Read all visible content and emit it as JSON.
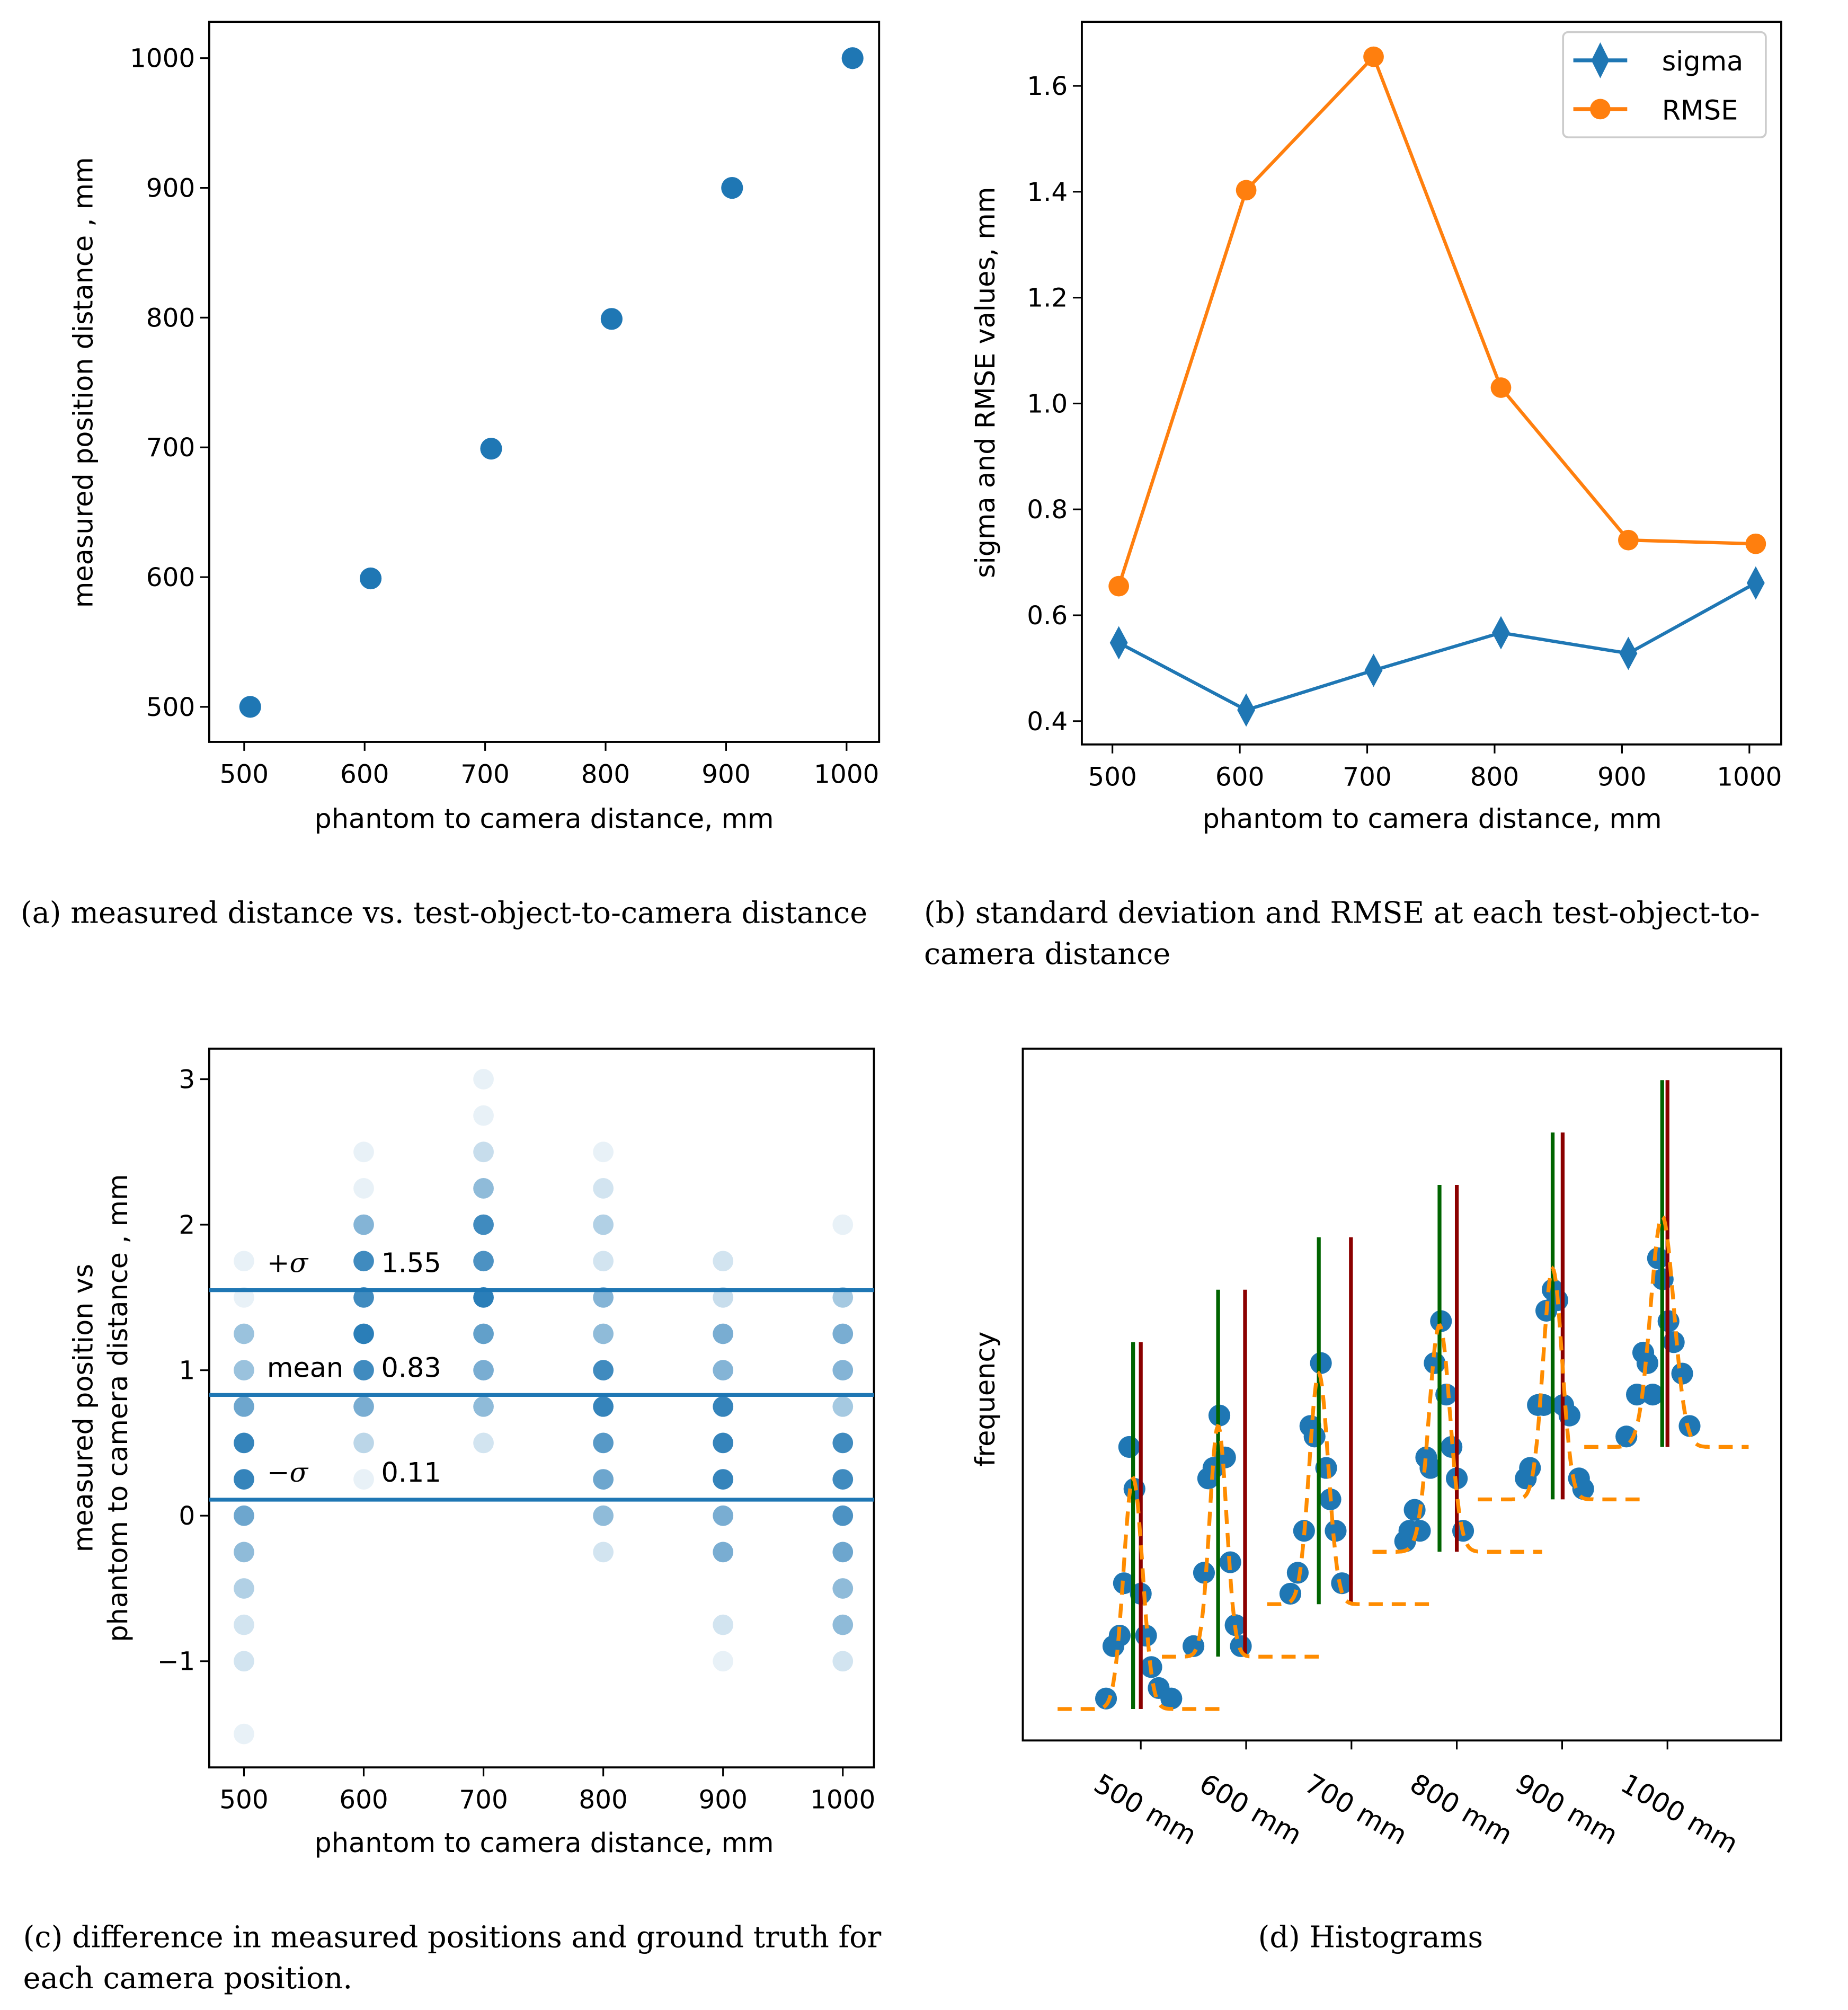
{
  "captions": {
    "a": "(a)  measured distance vs. test-object-to-camera distance",
    "b_line1": "(b)  standard deviation and RMSE at each test-object-to-",
    "b_line2": "camera distance",
    "c_line1": "(c)  difference in measured positions and ground truth for",
    "c_line2": "each camera position.",
    "d": "(d)  Histograms"
  },
  "chart_data": [
    {
      "id": "a",
      "type": "scatter",
      "xlabel": "phantom to camera distance, mm",
      "ylabel": "measured position distance , mm",
      "xlim": [
        471,
        1027
      ],
      "ylim": [
        473,
        1028
      ],
      "xticks": [
        500,
        600,
        700,
        800,
        900,
        1000
      ],
      "yticks": [
        500,
        600,
        700,
        800,
        900,
        1000
      ],
      "x": [
        505,
        605,
        705,
        805,
        905,
        1005
      ],
      "y": [
        500,
        599,
        699,
        799,
        900,
        1000
      ],
      "color": "#1f77b4"
    },
    {
      "id": "b",
      "type": "line",
      "xlabel": "phantom to camera distance, mm",
      "ylabel": "sigma and RMSE values, mm",
      "xlim": [
        476,
        1025
      ],
      "ylim": [
        0.356,
        1.721
      ],
      "xticks": [
        500,
        600,
        700,
        800,
        900,
        1000
      ],
      "yticks": [
        "0.4",
        "0.6",
        "0.8",
        "1.0",
        "1.2",
        "1.4",
        "1.6"
      ],
      "x": [
        505,
        605,
        705,
        805,
        905,
        1005
      ],
      "legend": "top-right",
      "series": [
        {
          "name": "sigma",
          "marker": "diamond",
          "color": "#1f77b4",
          "values": [
            0.548,
            0.421,
            0.496,
            0.567,
            0.528,
            0.661
          ]
        },
        {
          "name": "RMSE",
          "marker": "circle",
          "color": "#ff7f0e",
          "values": [
            0.655,
            1.403,
            1.655,
            1.03,
            0.742,
            0.735
          ]
        }
      ]
    },
    {
      "id": "c",
      "type": "scatter",
      "xlabel": "phantom to camera distance, mm",
      "ylabel_line1": "measured position vs",
      "ylabel_line2": "phantom to camera distance , mm",
      "xlim": [
        471,
        1026
      ],
      "ylim": [
        -1.73,
        3.21
      ],
      "xticks": [
        500,
        600,
        700,
        800,
        900,
        1000
      ],
      "yticks": [
        "−1",
        "0",
        "1",
        "2",
        "3"
      ],
      "ytick_values": [
        -1,
        0,
        1,
        2,
        3
      ],
      "color": "#1f77b4",
      "columns": [
        {
          "x": 500,
          "points": [
            [
              1.75,
              0.1
            ],
            [
              1.5,
              0.1
            ],
            [
              1.25,
              0.45
            ],
            [
              1,
              0.45
            ],
            [
              0.75,
              0.65
            ],
            [
              0.5,
              0.9
            ],
            [
              0.25,
              0.9
            ],
            [
              0,
              0.65
            ],
            [
              -0.25,
              0.5
            ],
            [
              -0.5,
              0.35
            ],
            [
              -0.75,
              0.2
            ],
            [
              -1,
              0.2
            ],
            [
              -1.5,
              0.1
            ]
          ]
        },
        {
          "x": 600,
          "points": [
            [
              2.5,
              0.1
            ],
            [
              2.25,
              0.1
            ],
            [
              2,
              0.55
            ],
            [
              1.75,
              0.85
            ],
            [
              1.5,
              0.85
            ],
            [
              1.25,
              0.95
            ],
            [
              1,
              0.85
            ],
            [
              0.75,
              0.6
            ],
            [
              0.5,
              0.3
            ],
            [
              0.25,
              0.1
            ]
          ]
        },
        {
          "x": 700,
          "points": [
            [
              3,
              0.1
            ],
            [
              2.75,
              0.1
            ],
            [
              2.5,
              0.25
            ],
            [
              2.25,
              0.5
            ],
            [
              2,
              0.85
            ],
            [
              1.75,
              0.8
            ],
            [
              1.5,
              0.95
            ],
            [
              1.25,
              0.7
            ],
            [
              1,
              0.6
            ],
            [
              0.75,
              0.5
            ],
            [
              0.5,
              0.2
            ]
          ]
        },
        {
          "x": 800,
          "points": [
            [
              2.5,
              0.1
            ],
            [
              2.25,
              0.2
            ],
            [
              2,
              0.35
            ],
            [
              1.75,
              0.2
            ],
            [
              1.5,
              0.55
            ],
            [
              1.25,
              0.5
            ],
            [
              1,
              0.85
            ],
            [
              0.75,
              0.9
            ],
            [
              0.5,
              0.75
            ],
            [
              0.25,
              0.65
            ],
            [
              0,
              0.5
            ],
            [
              -0.25,
              0.2
            ]
          ]
        },
        {
          "x": 900,
          "points": [
            [
              1.75,
              0.2
            ],
            [
              1.5,
              0.25
            ],
            [
              1.25,
              0.6
            ],
            [
              1,
              0.55
            ],
            [
              0.75,
              0.9
            ],
            [
              0.5,
              0.9
            ],
            [
              0.25,
              0.9
            ],
            [
              0,
              0.6
            ],
            [
              -0.25,
              0.6
            ],
            [
              -0.75,
              0.2
            ],
            [
              -1,
              0.1
            ]
          ]
        },
        {
          "x": 1000,
          "points": [
            [
              2,
              0.1
            ],
            [
              1.5,
              0.4
            ],
            [
              1.25,
              0.6
            ],
            [
              1,
              0.55
            ],
            [
              0.75,
              0.4
            ],
            [
              0.5,
              0.85
            ],
            [
              0.25,
              0.85
            ],
            [
              0,
              0.8
            ],
            [
              -0.25,
              0.65
            ],
            [
              -0.5,
              0.5
            ],
            [
              -0.75,
              0.5
            ],
            [
              -1,
              0.2
            ]
          ]
        }
      ],
      "hlines": [
        {
          "label": "+σ",
          "value": 1.55,
          "value_text": "1.55"
        },
        {
          "label": "mean",
          "value": 0.83,
          "value_text": "0.83"
        },
        {
          "label": "−σ",
          "value": 0.11,
          "value_text": "0.11"
        }
      ]
    },
    {
      "id": "d",
      "type": "scatter",
      "ylabel": "frequency",
      "xlim": [
        388,
        1108
      ],
      "ylim": [
        -3,
        63
      ],
      "xticks": [
        500,
        600,
        700,
        800,
        900,
        1000
      ],
      "xticklabels": [
        "500 mm",
        "600 mm",
        "700 mm",
        "800 mm",
        "900 mm",
        "1000 mm"
      ],
      "colors": {
        "points": "#1f77b4",
        "fit": "#ff8c00",
        "mean_line": "#006400",
        "truth_line": "#8b0000"
      },
      "histograms": [
        {
          "baseline": 0,
          "mean": 492.7,
          "truth": 500,
          "fit_sigma": 9,
          "fit_peak": 22,
          "fit_range": [
            421,
            580
          ],
          "line_height": 35,
          "points": [
            [
              467,
              1
            ],
            [
              474,
              6
            ],
            [
              480,
              7
            ],
            [
              484,
              12
            ],
            [
              489,
              25
            ],
            [
              494,
              21
            ],
            [
              500,
              11
            ],
            [
              505,
              7
            ],
            [
              510,
              4
            ],
            [
              517,
              2
            ],
            [
              529,
              1
            ]
          ]
        },
        {
          "baseline": 5,
          "mean": 573.4,
          "truth": 599,
          "fit_sigma": 8,
          "fit_peak": 22,
          "fit_range": [
            520,
            677
          ],
          "line_height": 35,
          "points": [
            [
              550,
              1
            ],
            [
              560,
              8
            ],
            [
              564,
              17
            ],
            [
              569,
              18
            ],
            [
              574.6,
              23
            ],
            [
              580,
              19
            ],
            [
              585,
              9
            ],
            [
              590,
              3
            ],
            [
              595,
              1
            ]
          ]
        },
        {
          "baseline": 10,
          "mean": 669,
          "truth": 699.5,
          "fit_sigma": 9,
          "fit_peak": 22,
          "fit_range": [
            620,
            781
          ],
          "line_height": 35,
          "points": [
            [
              642,
              1
            ],
            [
              649,
              3
            ],
            [
              655,
              7
            ],
            [
              661,
              17
            ],
            [
              665,
              16
            ],
            [
              671,
              23
            ],
            [
              676,
              13
            ],
            [
              680,
              10
            ],
            [
              685,
              7
            ],
            [
              691,
              2
            ]
          ]
        },
        {
          "baseline": 15,
          "mean": 783.6,
          "truth": 800,
          "fit_sigma": 10,
          "fit_peak": 21.6,
          "fit_range": [
            720,
            881
          ],
          "line_height": 35,
          "points": [
            [
              751,
              1
            ],
            [
              755,
              2
            ],
            [
              765,
              2
            ],
            [
              760,
              4
            ],
            [
              771,
              9
            ],
            [
              775,
              8
            ],
            [
              779,
              18
            ],
            [
              785,
              22
            ],
            [
              790,
              15
            ],
            [
              795,
              10
            ],
            [
              800,
              7
            ],
            [
              806,
              2
            ]
          ]
        },
        {
          "baseline": 20,
          "mean": 891,
          "truth": 900.5,
          "fit_sigma": 9,
          "fit_peak": 22,
          "fit_range": [
            820,
            980
          ],
          "line_height": 35,
          "points": [
            [
              865.5,
              2
            ],
            [
              869.5,
              3
            ],
            [
              877,
              9
            ],
            [
              882.5,
              9
            ],
            [
              885,
              18
            ],
            [
              891,
              20
            ],
            [
              895.5,
              19
            ],
            [
              901,
              9
            ],
            [
              907,
              8
            ],
            [
              916,
              2
            ],
            [
              920,
              1
            ]
          ]
        },
        {
          "baseline": 25,
          "mean": 995,
          "truth": 1000,
          "fit_sigma": 11,
          "fit_peak": 22,
          "fit_range": [
            921,
            1077
          ],
          "line_height": 35,
          "points": [
            [
              961,
              1
            ],
            [
              971,
              5
            ],
            [
              977,
              9
            ],
            [
              981,
              8
            ],
            [
              986,
              5
            ],
            [
              991,
              18
            ],
            [
              995.5,
              16
            ],
            [
              1001,
              12
            ],
            [
              1006,
              10
            ],
            [
              1014,
              7
            ],
            [
              1021,
              2
            ]
          ]
        }
      ]
    }
  ]
}
